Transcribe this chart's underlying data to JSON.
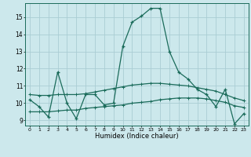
{
  "xlabel": "Humidex (Indice chaleur)",
  "bg_color": "#cce8ec",
  "grid_color": "#aacdd4",
  "line_color": "#1a6b5a",
  "xlim": [
    -0.5,
    23.5
  ],
  "ylim": [
    8.7,
    15.8
  ],
  "xticks": [
    0,
    1,
    2,
    3,
    4,
    5,
    6,
    7,
    8,
    9,
    10,
    11,
    12,
    13,
    14,
    15,
    16,
    17,
    18,
    19,
    20,
    21,
    22,
    23
  ],
  "yticks": [
    9,
    10,
    11,
    12,
    13,
    14,
    15
  ],
  "line1_x": [
    0,
    1,
    2,
    3,
    4,
    5,
    6,
    7,
    8,
    9,
    10,
    11,
    12,
    13,
    14,
    15,
    16,
    17,
    18,
    19,
    20,
    21,
    22,
    23
  ],
  "line1_y": [
    10.2,
    9.8,
    9.2,
    11.8,
    10.0,
    9.1,
    10.5,
    10.5,
    9.9,
    10.0,
    13.3,
    14.7,
    15.05,
    15.5,
    15.5,
    13.0,
    11.8,
    11.4,
    10.8,
    10.5,
    9.8,
    10.8,
    8.8,
    9.4
  ],
  "line2_x": [
    0,
    1,
    2,
    3,
    4,
    5,
    6,
    7,
    8,
    9,
    10,
    11,
    12,
    13,
    14,
    15,
    16,
    17,
    18,
    19,
    20,
    21,
    22,
    23
  ],
  "line2_y": [
    9.5,
    9.5,
    9.5,
    9.55,
    9.6,
    9.6,
    9.7,
    9.75,
    9.8,
    9.85,
    9.9,
    10.0,
    10.05,
    10.1,
    10.2,
    10.25,
    10.3,
    10.3,
    10.3,
    10.25,
    10.15,
    10.05,
    9.85,
    9.75
  ],
  "line3_x": [
    0,
    1,
    2,
    3,
    4,
    5,
    6,
    7,
    8,
    9,
    10,
    11,
    12,
    13,
    14,
    15,
    16,
    17,
    18,
    19,
    20,
    21,
    22,
    23
  ],
  "line3_y": [
    10.5,
    10.45,
    10.45,
    10.5,
    10.5,
    10.5,
    10.55,
    10.65,
    10.75,
    10.85,
    10.95,
    11.05,
    11.1,
    11.15,
    11.15,
    11.1,
    11.05,
    11.0,
    10.9,
    10.8,
    10.7,
    10.5,
    10.3,
    10.15
  ],
  "spine_color": "#1a6b5a"
}
